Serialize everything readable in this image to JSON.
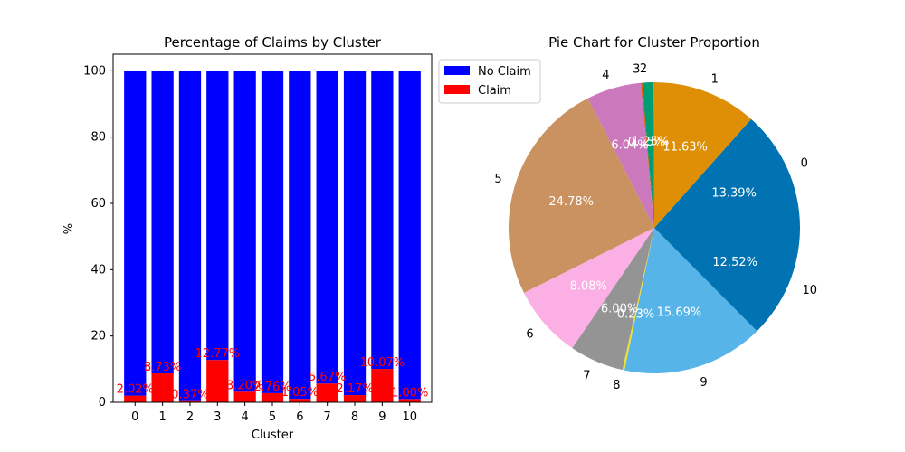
{
  "chart_data": [
    {
      "type": "bar",
      "stacked": true,
      "title": "Percentage of Claims by Cluster",
      "xlabel": "Cluster",
      "ylabel": "%",
      "ylim": [
        0,
        105
      ],
      "yticks": [
        0,
        20,
        40,
        60,
        80,
        100
      ],
      "categories": [
        "0",
        "1",
        "2",
        "3",
        "4",
        "5",
        "6",
        "7",
        "8",
        "9",
        "10"
      ],
      "series": [
        {
          "name": "No Claim",
          "color": "#0000ff",
          "values": [
            97.98,
            91.27,
            99.63,
            87.23,
            96.8,
            97.24,
            98.95,
            94.33,
            97.83,
            89.93,
            99.0
          ]
        },
        {
          "name": "Claim",
          "color": "#ff0000",
          "values": [
            2.02,
            8.73,
            0.37,
            12.77,
            3.2,
            2.76,
            1.05,
            5.67,
            2.17,
            10.07,
            1.0
          ]
        }
      ],
      "data_labels": [
        "2.02%",
        "8.73%",
        "0.37%",
        "12.77%",
        "3.20%",
        "2.76%",
        "1.05%",
        "5.67%",
        "2.17%",
        "10.07%",
        "1.00%"
      ],
      "legend": {
        "placement": "top-right (outside)",
        "entries": [
          "No Claim",
          "Claim"
        ]
      },
      "grid": false
    },
    {
      "type": "pie",
      "title": "Pie Chart for Cluster Proportion",
      "start_angle_deg": 0,
      "slices": [
        {
          "label": "0",
          "value": 13.39,
          "pct_label": "13.39%",
          "color": "#0173b2"
        },
        {
          "label": "1",
          "value": 11.63,
          "pct_label": "11.63%",
          "color": "#de8f05"
        },
        {
          "label": "2",
          "value": 1.25,
          "pct_label": "1.25%",
          "color": "#029e73"
        },
        {
          "label": "3",
          "value": 0.15,
          "pct_label": "0.15%",
          "color": "#d55e00"
        },
        {
          "label": "4",
          "value": 6.04,
          "pct_label": "6.04%",
          "color": "#cc78bc"
        },
        {
          "label": "5",
          "value": 24.78,
          "pct_label": "24.78%",
          "color": "#ca9161"
        },
        {
          "label": "6",
          "value": 8.08,
          "pct_label": "8.08%",
          "color": "#fbafe4"
        },
        {
          "label": "7",
          "value": 6.0,
          "pct_label": "6.00%",
          "color": "#949494"
        },
        {
          "label": "8",
          "value": 0.23,
          "pct_label": "0.23%",
          "color": "#ece133"
        },
        {
          "label": "9",
          "value": 15.69,
          "pct_label": "15.69%",
          "color": "#56b4e9"
        },
        {
          "label": "10",
          "value": 12.52,
          "pct_label": "12.52%",
          "color": "#0173b2"
        }
      ]
    }
  ]
}
